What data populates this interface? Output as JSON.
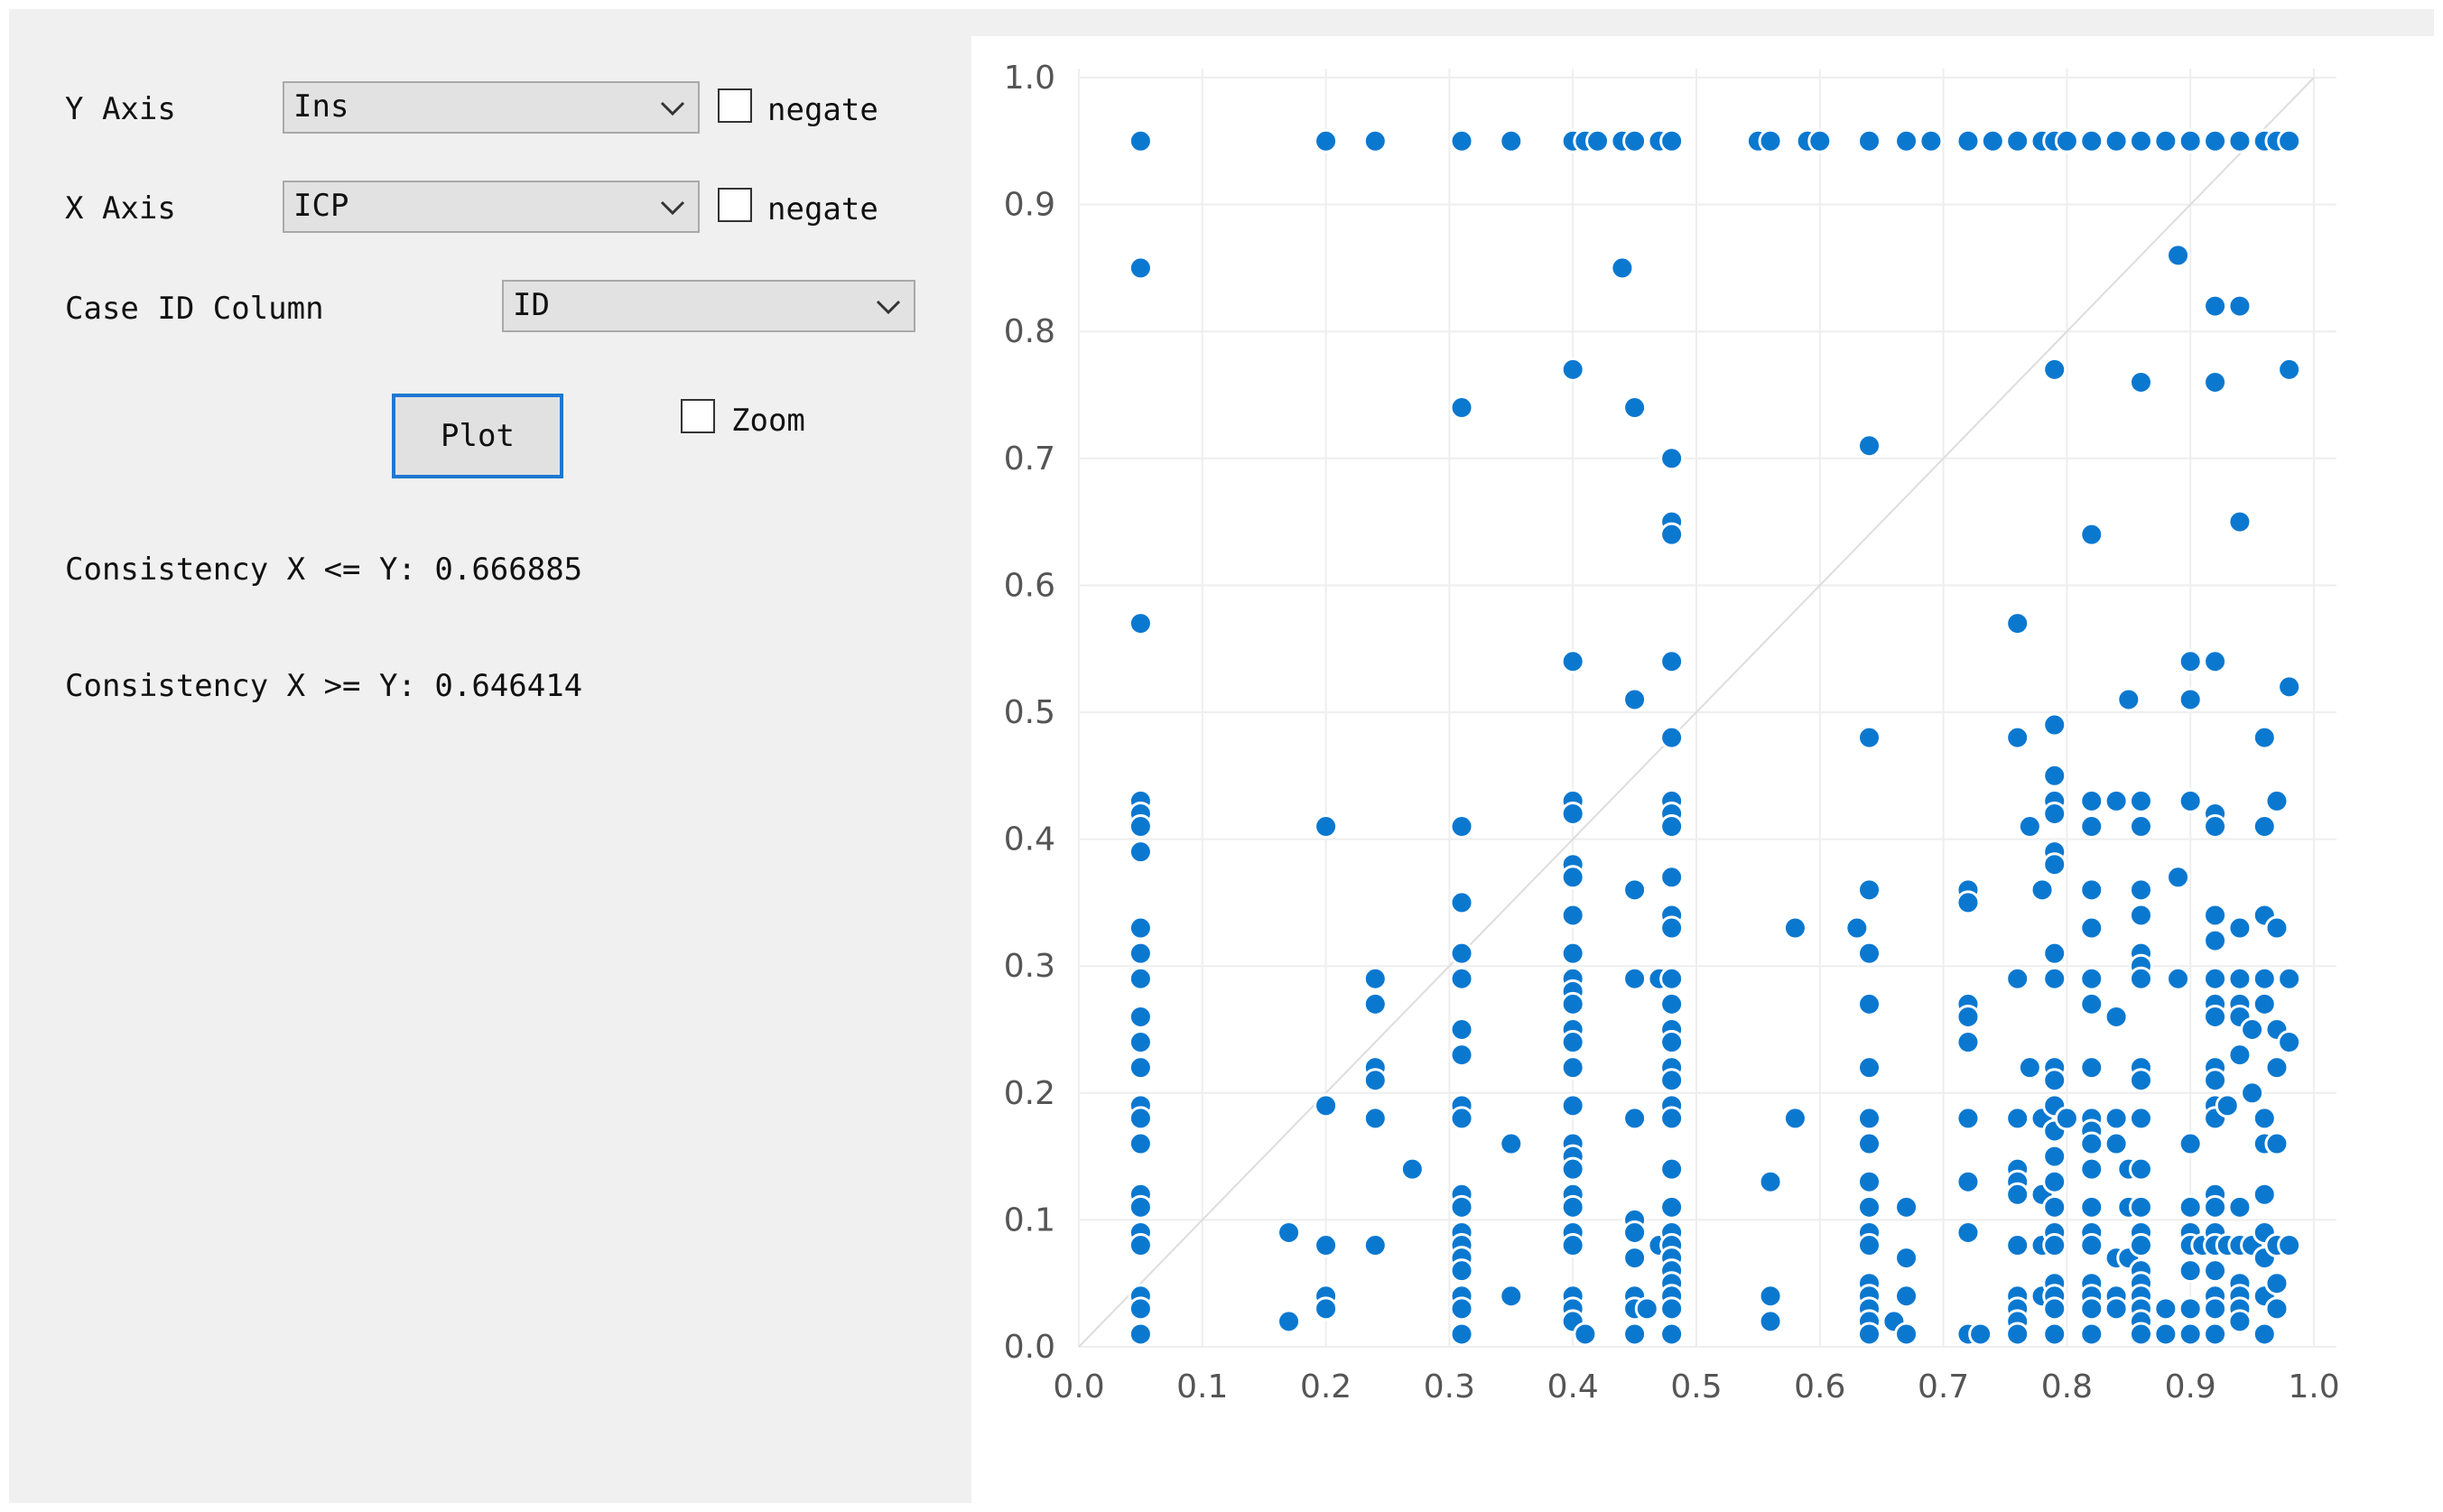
{
  "controls": {
    "y_axis_label": "Y Axis",
    "y_axis_value": "Ins",
    "y_negate_label": "negate",
    "x_axis_label": "X Axis",
    "x_axis_value": "ICP",
    "x_negate_label": "negate",
    "case_id_label": "Case ID Column",
    "case_id_value": "ID",
    "plot_button": "Plot",
    "zoom_label": "Zoom",
    "consistency_le": "Consistency X <= Y: 0.666885",
    "consistency_ge": "Consistency X >= Y: 0.646414"
  },
  "chart_data": {
    "type": "scatter",
    "title": "",
    "xlabel": "",
    "ylabel": "",
    "xlim": [
      0,
      1
    ],
    "ylim": [
      0,
      1
    ],
    "x_ticks": [
      "0.0",
      "0.1",
      "0.2",
      "0.3",
      "0.4",
      "0.5",
      "0.6",
      "0.7",
      "0.8",
      "0.9",
      "1.0"
    ],
    "y_ticks": [
      "0.0",
      "0.1",
      "0.2",
      "0.3",
      "0.4",
      "0.5",
      "0.6",
      "0.7",
      "0.8",
      "0.9",
      "1.0"
    ],
    "grid": true,
    "reference_line": "y = x",
    "marker_color": "#0b78d0",
    "points": [
      [
        0.05,
        0.95
      ],
      [
        0.2,
        0.95
      ],
      [
        0.24,
        0.95
      ],
      [
        0.31,
        0.95
      ],
      [
        0.35,
        0.95
      ],
      [
        0.4,
        0.95
      ],
      [
        0.41,
        0.95
      ],
      [
        0.42,
        0.95
      ],
      [
        0.44,
        0.95
      ],
      [
        0.45,
        0.95
      ],
      [
        0.47,
        0.95
      ],
      [
        0.48,
        0.95
      ],
      [
        0.55,
        0.95
      ],
      [
        0.56,
        0.95
      ],
      [
        0.59,
        0.95
      ],
      [
        0.6,
        0.95
      ],
      [
        0.64,
        0.95
      ],
      [
        0.67,
        0.95
      ],
      [
        0.69,
        0.95
      ],
      [
        0.72,
        0.95
      ],
      [
        0.74,
        0.95
      ],
      [
        0.76,
        0.95
      ],
      [
        0.78,
        0.95
      ],
      [
        0.79,
        0.95
      ],
      [
        0.8,
        0.95
      ],
      [
        0.82,
        0.95
      ],
      [
        0.84,
        0.95
      ],
      [
        0.86,
        0.95
      ],
      [
        0.88,
        0.95
      ],
      [
        0.9,
        0.95
      ],
      [
        0.92,
        0.95
      ],
      [
        0.94,
        0.95
      ],
      [
        0.96,
        0.95
      ],
      [
        0.97,
        0.95
      ],
      [
        0.98,
        0.95
      ],
      [
        0.05,
        0.85
      ],
      [
        0.44,
        0.85
      ],
      [
        0.89,
        0.86
      ],
      [
        0.92,
        0.82
      ],
      [
        0.94,
        0.82
      ],
      [
        0.4,
        0.77
      ],
      [
        0.79,
        0.77
      ],
      [
        0.86,
        0.76
      ],
      [
        0.92,
        0.76
      ],
      [
        0.98,
        0.77
      ],
      [
        0.31,
        0.74
      ],
      [
        0.45,
        0.74
      ],
      [
        0.64,
        0.71
      ],
      [
        0.48,
        0.7
      ],
      [
        0.48,
        0.65
      ],
      [
        0.48,
        0.64
      ],
      [
        0.82,
        0.64
      ],
      [
        0.94,
        0.65
      ],
      [
        0.05,
        0.57
      ],
      [
        0.76,
        0.57
      ],
      [
        0.4,
        0.54
      ],
      [
        0.48,
        0.54
      ],
      [
        0.9,
        0.54
      ],
      [
        0.92,
        0.54
      ],
      [
        0.45,
        0.51
      ],
      [
        0.85,
        0.51
      ],
      [
        0.9,
        0.51
      ],
      [
        0.98,
        0.52
      ],
      [
        0.48,
        0.48
      ],
      [
        0.64,
        0.48
      ],
      [
        0.76,
        0.48
      ],
      [
        0.79,
        0.49
      ],
      [
        0.96,
        0.48
      ],
      [
        0.05,
        0.43
      ],
      [
        0.05,
        0.42
      ],
      [
        0.05,
        0.41
      ],
      [
        0.05,
        0.39
      ],
      [
        0.2,
        0.41
      ],
      [
        0.31,
        0.41
      ],
      [
        0.4,
        0.43
      ],
      [
        0.4,
        0.42
      ],
      [
        0.48,
        0.43
      ],
      [
        0.48,
        0.42
      ],
      [
        0.48,
        0.41
      ],
      [
        0.77,
        0.41
      ],
      [
        0.79,
        0.45
      ],
      [
        0.79,
        0.43
      ],
      [
        0.79,
        0.42
      ],
      [
        0.82,
        0.43
      ],
      [
        0.84,
        0.43
      ],
      [
        0.86,
        0.43
      ],
      [
        0.82,
        0.41
      ],
      [
        0.86,
        0.41
      ],
      [
        0.9,
        0.43
      ],
      [
        0.92,
        0.42
      ],
      [
        0.92,
        0.41
      ],
      [
        0.96,
        0.41
      ],
      [
        0.97,
        0.43
      ],
      [
        0.4,
        0.38
      ],
      [
        0.4,
        0.37
      ],
      [
        0.48,
        0.37
      ],
      [
        0.45,
        0.36
      ],
      [
        0.64,
        0.36
      ],
      [
        0.72,
        0.36
      ],
      [
        0.72,
        0.35
      ],
      [
        0.78,
        0.36
      ],
      [
        0.79,
        0.39
      ],
      [
        0.79,
        0.38
      ],
      [
        0.82,
        0.36
      ],
      [
        0.86,
        0.36
      ],
      [
        0.89,
        0.37
      ],
      [
        0.31,
        0.35
      ],
      [
        0.4,
        0.34
      ],
      [
        0.48,
        0.34
      ],
      [
        0.86,
        0.34
      ],
      [
        0.92,
        0.34
      ],
      [
        0.96,
        0.34
      ],
      [
        0.05,
        0.33
      ],
      [
        0.05,
        0.31
      ],
      [
        0.05,
        0.29
      ],
      [
        0.24,
        0.29
      ],
      [
        0.24,
        0.27
      ],
      [
        0.31,
        0.31
      ],
      [
        0.31,
        0.29
      ],
      [
        0.4,
        0.31
      ],
      [
        0.4,
        0.29
      ],
      [
        0.4,
        0.28
      ],
      [
        0.4,
        0.27
      ],
      [
        0.45,
        0.29
      ],
      [
        0.47,
        0.29
      ],
      [
        0.48,
        0.33
      ],
      [
        0.48,
        0.29
      ],
      [
        0.48,
        0.27
      ],
      [
        0.58,
        0.33
      ],
      [
        0.63,
        0.33
      ],
      [
        0.64,
        0.31
      ],
      [
        0.64,
        0.27
      ],
      [
        0.72,
        0.27
      ],
      [
        0.72,
        0.26
      ],
      [
        0.76,
        0.29
      ],
      [
        0.79,
        0.31
      ],
      [
        0.79,
        0.29
      ],
      [
        0.82,
        0.33
      ],
      [
        0.82,
        0.29
      ],
      [
        0.82,
        0.27
      ],
      [
        0.84,
        0.26
      ],
      [
        0.86,
        0.31
      ],
      [
        0.86,
        0.3
      ],
      [
        0.86,
        0.29
      ],
      [
        0.89,
        0.29
      ],
      [
        0.92,
        0.32
      ],
      [
        0.92,
        0.29
      ],
      [
        0.92,
        0.27
      ],
      [
        0.92,
        0.26
      ],
      [
        0.94,
        0.33
      ],
      [
        0.94,
        0.29
      ],
      [
        0.94,
        0.27
      ],
      [
        0.94,
        0.26
      ],
      [
        0.95,
        0.25
      ],
      [
        0.96,
        0.29
      ],
      [
        0.96,
        0.27
      ],
      [
        0.97,
        0.33
      ],
      [
        0.97,
        0.25
      ],
      [
        0.98,
        0.29
      ],
      [
        0.98,
        0.24
      ],
      [
        0.05,
        0.26
      ],
      [
        0.05,
        0.24
      ],
      [
        0.05,
        0.22
      ],
      [
        0.05,
        0.19
      ],
      [
        0.05,
        0.18
      ],
      [
        0.05,
        0.16
      ],
      [
        0.24,
        0.22
      ],
      [
        0.24,
        0.21
      ],
      [
        0.24,
        0.18
      ],
      [
        0.2,
        0.19
      ],
      [
        0.27,
        0.14
      ],
      [
        0.31,
        0.25
      ],
      [
        0.31,
        0.23
      ],
      [
        0.31,
        0.19
      ],
      [
        0.31,
        0.18
      ],
      [
        0.35,
        0.16
      ],
      [
        0.4,
        0.25
      ],
      [
        0.4,
        0.24
      ],
      [
        0.4,
        0.22
      ],
      [
        0.4,
        0.19
      ],
      [
        0.4,
        0.16
      ],
      [
        0.4,
        0.15
      ],
      [
        0.4,
        0.14
      ],
      [
        0.45,
        0.18
      ],
      [
        0.48,
        0.25
      ],
      [
        0.48,
        0.24
      ],
      [
        0.48,
        0.22
      ],
      [
        0.48,
        0.21
      ],
      [
        0.48,
        0.19
      ],
      [
        0.48,
        0.18
      ],
      [
        0.48,
        0.14
      ],
      [
        0.58,
        0.18
      ],
      [
        0.64,
        0.22
      ],
      [
        0.64,
        0.18
      ],
      [
        0.64,
        0.16
      ],
      [
        0.72,
        0.24
      ],
      [
        0.72,
        0.18
      ],
      [
        0.76,
        0.18
      ],
      [
        0.76,
        0.14
      ],
      [
        0.77,
        0.22
      ],
      [
        0.78,
        0.18
      ],
      [
        0.79,
        0.22
      ],
      [
        0.79,
        0.21
      ],
      [
        0.79,
        0.19
      ],
      [
        0.79,
        0.17
      ],
      [
        0.79,
        0.15
      ],
      [
        0.8,
        0.18
      ],
      [
        0.82,
        0.22
      ],
      [
        0.82,
        0.18
      ],
      [
        0.82,
        0.17
      ],
      [
        0.82,
        0.16
      ],
      [
        0.84,
        0.18
      ],
      [
        0.84,
        0.16
      ],
      [
        0.85,
        0.14
      ],
      [
        0.86,
        0.22
      ],
      [
        0.86,
        0.21
      ],
      [
        0.86,
        0.18
      ],
      [
        0.86,
        0.14
      ],
      [
        0.9,
        0.16
      ],
      [
        0.92,
        0.22
      ],
      [
        0.92,
        0.21
      ],
      [
        0.92,
        0.19
      ],
      [
        0.92,
        0.18
      ],
      [
        0.93,
        0.19
      ],
      [
        0.94,
        0.23
      ],
      [
        0.95,
        0.2
      ],
      [
        0.96,
        0.18
      ],
      [
        0.96,
        0.16
      ],
      [
        0.97,
        0.22
      ],
      [
        0.97,
        0.16
      ],
      [
        0.05,
        0.12
      ],
      [
        0.05,
        0.11
      ],
      [
        0.05,
        0.09
      ],
      [
        0.05,
        0.08
      ],
      [
        0.05,
        0.04
      ],
      [
        0.05,
        0.03
      ],
      [
        0.05,
        0.01
      ],
      [
        0.17,
        0.09
      ],
      [
        0.2,
        0.08
      ],
      [
        0.17,
        0.02
      ],
      [
        0.2,
        0.04
      ],
      [
        0.2,
        0.03
      ],
      [
        0.24,
        0.08
      ],
      [
        0.31,
        0.12
      ],
      [
        0.31,
        0.11
      ],
      [
        0.31,
        0.09
      ],
      [
        0.31,
        0.08
      ],
      [
        0.31,
        0.07
      ],
      [
        0.31,
        0.06
      ],
      [
        0.31,
        0.04
      ],
      [
        0.31,
        0.03
      ],
      [
        0.31,
        0.01
      ],
      [
        0.35,
        0.04
      ],
      [
        0.4,
        0.12
      ],
      [
        0.4,
        0.11
      ],
      [
        0.4,
        0.09
      ],
      [
        0.4,
        0.08
      ],
      [
        0.4,
        0.04
      ],
      [
        0.4,
        0.03
      ],
      [
        0.4,
        0.02
      ],
      [
        0.41,
        0.01
      ],
      [
        0.45,
        0.1
      ],
      [
        0.45,
        0.09
      ],
      [
        0.45,
        0.07
      ],
      [
        0.45,
        0.04
      ],
      [
        0.45,
        0.03
      ],
      [
        0.45,
        0.01
      ],
      [
        0.46,
        0.03
      ],
      [
        0.47,
        0.08
      ],
      [
        0.48,
        0.11
      ],
      [
        0.48,
        0.09
      ],
      [
        0.48,
        0.08
      ],
      [
        0.48,
        0.07
      ],
      [
        0.48,
        0.06
      ],
      [
        0.48,
        0.05
      ],
      [
        0.48,
        0.04
      ],
      [
        0.48,
        0.03
      ],
      [
        0.48,
        0.01
      ],
      [
        0.56,
        0.13
      ],
      [
        0.56,
        0.04
      ],
      [
        0.56,
        0.02
      ],
      [
        0.64,
        0.13
      ],
      [
        0.64,
        0.11
      ],
      [
        0.64,
        0.09
      ],
      [
        0.64,
        0.08
      ],
      [
        0.64,
        0.05
      ],
      [
        0.64,
        0.04
      ],
      [
        0.64,
        0.03
      ],
      [
        0.64,
        0.02
      ],
      [
        0.64,
        0.01
      ],
      [
        0.66,
        0.02
      ],
      [
        0.67,
        0.11
      ],
      [
        0.67,
        0.07
      ],
      [
        0.67,
        0.04
      ],
      [
        0.67,
        0.01
      ],
      [
        0.72,
        0.13
      ],
      [
        0.72,
        0.09
      ],
      [
        0.72,
        0.01
      ],
      [
        0.73,
        0.01
      ],
      [
        0.76,
        0.13
      ],
      [
        0.76,
        0.12
      ],
      [
        0.76,
        0.08
      ],
      [
        0.76,
        0.04
      ],
      [
        0.76,
        0.03
      ],
      [
        0.76,
        0.02
      ],
      [
        0.76,
        0.01
      ],
      [
        0.78,
        0.12
      ],
      [
        0.78,
        0.08
      ],
      [
        0.78,
        0.04
      ],
      [
        0.79,
        0.13
      ],
      [
        0.79,
        0.11
      ],
      [
        0.79,
        0.09
      ],
      [
        0.79,
        0.08
      ],
      [
        0.79,
        0.05
      ],
      [
        0.79,
        0.04
      ],
      [
        0.79,
        0.03
      ],
      [
        0.79,
        0.01
      ],
      [
        0.82,
        0.14
      ],
      [
        0.82,
        0.11
      ],
      [
        0.82,
        0.09
      ],
      [
        0.82,
        0.08
      ],
      [
        0.82,
        0.05
      ],
      [
        0.82,
        0.04
      ],
      [
        0.82,
        0.03
      ],
      [
        0.82,
        0.01
      ],
      [
        0.84,
        0.07
      ],
      [
        0.84,
        0.04
      ],
      [
        0.84,
        0.03
      ],
      [
        0.85,
        0.11
      ],
      [
        0.85,
        0.07
      ],
      [
        0.86,
        0.11
      ],
      [
        0.86,
        0.09
      ],
      [
        0.86,
        0.08
      ],
      [
        0.86,
        0.06
      ],
      [
        0.86,
        0.05
      ],
      [
        0.86,
        0.04
      ],
      [
        0.86,
        0.03
      ],
      [
        0.86,
        0.02
      ],
      [
        0.86,
        0.01
      ],
      [
        0.88,
        0.03
      ],
      [
        0.88,
        0.01
      ],
      [
        0.9,
        0.11
      ],
      [
        0.9,
        0.09
      ],
      [
        0.9,
        0.08
      ],
      [
        0.9,
        0.06
      ],
      [
        0.9,
        0.03
      ],
      [
        0.9,
        0.01
      ],
      [
        0.91,
        0.08
      ],
      [
        0.92,
        0.12
      ],
      [
        0.92,
        0.11
      ],
      [
        0.92,
        0.09
      ],
      [
        0.92,
        0.08
      ],
      [
        0.92,
        0.06
      ],
      [
        0.92,
        0.04
      ],
      [
        0.92,
        0.03
      ],
      [
        0.92,
        0.01
      ],
      [
        0.93,
        0.08
      ],
      [
        0.94,
        0.11
      ],
      [
        0.94,
        0.08
      ],
      [
        0.94,
        0.05
      ],
      [
        0.94,
        0.04
      ],
      [
        0.94,
        0.03
      ],
      [
        0.94,
        0.02
      ],
      [
        0.95,
        0.08
      ],
      [
        0.96,
        0.12
      ],
      [
        0.96,
        0.09
      ],
      [
        0.96,
        0.07
      ],
      [
        0.96,
        0.04
      ],
      [
        0.96,
        0.01
      ],
      [
        0.97,
        0.08
      ],
      [
        0.97,
        0.05
      ],
      [
        0.97,
        0.03
      ],
      [
        0.98,
        0.08
      ]
    ]
  }
}
